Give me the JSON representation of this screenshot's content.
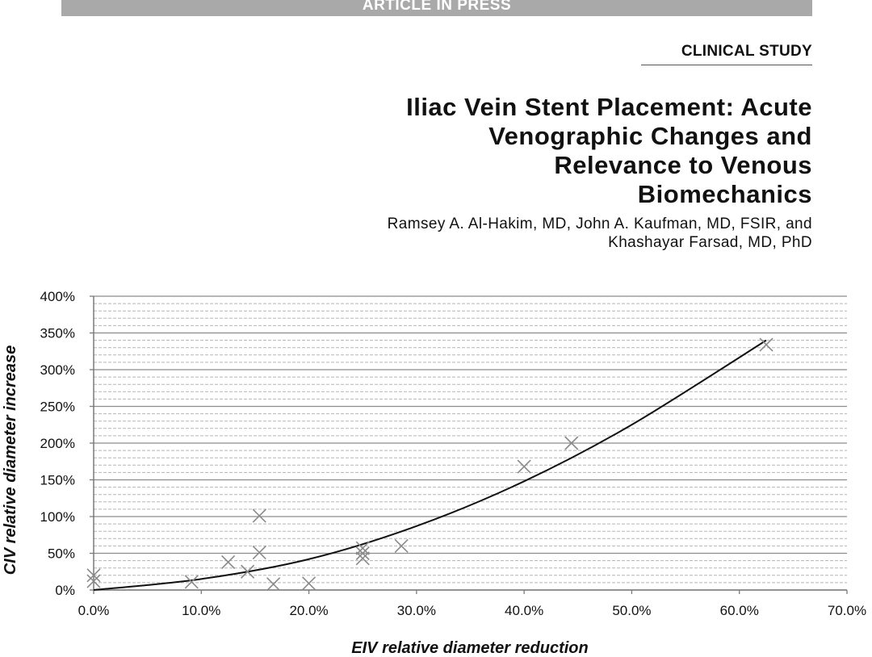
{
  "banner": {
    "text": "ARTICLE IN PRESS"
  },
  "section": "CLINICAL STUDY",
  "title_lines": [
    "Iliac Vein Stent Placement: Acute",
    "Venographic Changes and",
    "Relevance to Venous",
    "Biomechanics"
  ],
  "author_lines": [
    "Ramsey A. Al-Hakim, MD, John A. Kaufman, MD, FSIR, and",
    "Khashayar Farsad, MD, PhD"
  ],
  "chart_data": {
    "type": "scatter",
    "xlabel": "EIV relative diameter reduction",
    "ylabel": "CIV relative diameter increase",
    "xlim": [
      0,
      70
    ],
    "ylim": [
      0,
      400
    ],
    "x_ticks": [
      "0.0%",
      "10.0%",
      "20.0%",
      "30.0%",
      "40.0%",
      "50.0%",
      "60.0%",
      "70.0%"
    ],
    "y_ticks": [
      "0%",
      "50%",
      "100%",
      "150%",
      "200%",
      "250%",
      "300%",
      "350%",
      "400%"
    ],
    "grid": true,
    "marker": "x",
    "colors": {
      "points": "#8a8a8a",
      "trend": "#111111",
      "grid_major": "#8c8c8c",
      "grid_minor": "#b5b5b5"
    },
    "points": [
      {
        "x": 0.0,
        "y": 20
      },
      {
        "x": 0.0,
        "y": 12
      },
      {
        "x": 9.1,
        "y": 11
      },
      {
        "x": 12.5,
        "y": 38
      },
      {
        "x": 14.3,
        "y": 25
      },
      {
        "x": 15.4,
        "y": 101
      },
      {
        "x": 15.4,
        "y": 51
      },
      {
        "x": 16.7,
        "y": 8
      },
      {
        "x": 20.0,
        "y": 9
      },
      {
        "x": 25.0,
        "y": 57
      },
      {
        "x": 25.0,
        "y": 50
      },
      {
        "x": 25.0,
        "y": 43
      },
      {
        "x": 28.6,
        "y": 60
      },
      {
        "x": 40.0,
        "y": 168
      },
      {
        "x": 44.4,
        "y": 200
      },
      {
        "x": 62.5,
        "y": 334
      }
    ],
    "trendline": [
      {
        "x": 0,
        "y": 0
      },
      {
        "x": 10,
        "y": 15
      },
      {
        "x": 20,
        "y": 42
      },
      {
        "x": 30,
        "y": 87
      },
      {
        "x": 40,
        "y": 148
      },
      {
        "x": 50,
        "y": 225
      },
      {
        "x": 62.5,
        "y": 340
      }
    ]
  }
}
